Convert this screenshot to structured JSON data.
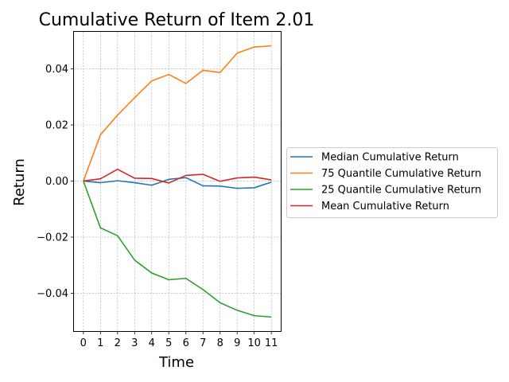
{
  "chart_data": {
    "type": "line",
    "title": "Cumulative Return of Item 2.01",
    "xlabel": "Time",
    "ylabel": "Return",
    "x": [
      0,
      1,
      2,
      3,
      4,
      5,
      6,
      7,
      8,
      9,
      10,
      11
    ],
    "x_tick_labels": [
      "0",
      "1",
      "2",
      "3",
      "4",
      "5",
      "6",
      "7",
      "8",
      "9",
      "10",
      "11"
    ],
    "y_ticks": [
      -0.04,
      -0.02,
      0.0,
      0.02,
      0.04
    ],
    "y_tick_labels": [
      "−0.04",
      "−0.02",
      "0.00",
      "0.02",
      "0.04"
    ],
    "xlim": [
      -0.55,
      11.55
    ],
    "ylim": [
      -0.0535,
      0.0532
    ],
    "grid": true,
    "legend_position": "right-outside",
    "series": [
      {
        "name": "Median Cumulative Return",
        "color": "#1f77b4",
        "values": [
          0.0,
          -0.0006,
          0.0001,
          -0.0006,
          -0.0015,
          0.0006,
          0.0012,
          -0.0017,
          -0.0018,
          -0.0026,
          -0.0024,
          -0.0004
        ]
      },
      {
        "name": "75 Quantile Cumulative Return",
        "color": "#ff7f0e",
        "values": [
          0.0,
          0.0165,
          0.0235,
          0.0297,
          0.0357,
          0.038,
          0.0348,
          0.0395,
          0.0387,
          0.0456,
          0.0478,
          0.0482
        ]
      },
      {
        "name": "25 Quantile Cumulative Return",
        "color": "#2ca02c",
        "values": [
          0.0,
          -0.0167,
          -0.0195,
          -0.0282,
          -0.0328,
          -0.0352,
          -0.0347,
          -0.0387,
          -0.0434,
          -0.0461,
          -0.048,
          -0.0485
        ]
      },
      {
        "name": "Mean Cumulative Return",
        "color": "#d62728",
        "values": [
          0.0,
          0.0008,
          0.0042,
          0.001,
          0.0009,
          -0.0007,
          0.002,
          0.0024,
          -0.0001,
          0.0011,
          0.0014,
          0.0004
        ]
      }
    ]
  }
}
